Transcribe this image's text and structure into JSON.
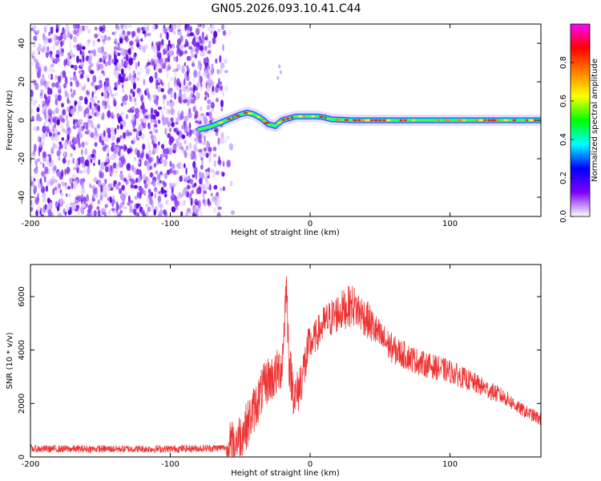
{
  "chart_data": [
    {
      "type": "heatmap",
      "title": "GN05.2026.093.10.41.C44",
      "xlabel": "Height of straight line (km)",
      "ylabel": "Frequency (Hz)",
      "xlim": [
        -200,
        165
      ],
      "ylim": [
        -50,
        50
      ],
      "xticks": [
        -200,
        -100,
        0,
        100
      ],
      "xtick_labels": [
        "-200",
        "-100",
        "0",
        "100"
      ],
      "yticks": [
        -40,
        -20,
        0,
        20,
        40
      ],
      "ytick_labels": [
        "-40",
        "-20",
        "0",
        "20",
        "40"
      ],
      "noise_region_x": [
        -200,
        -55
      ],
      "signal_trace": {
        "x": [
          -80,
          -70,
          -60,
          -50,
          -45,
          -40,
          -35,
          -30,
          -25,
          -20,
          -15,
          -10,
          -5,
          0,
          5,
          10,
          15,
          30,
          60,
          100,
          140,
          165
        ],
        "y": [
          -5,
          -3,
          0,
          3,
          4,
          3,
          1,
          -2,
          -3,
          0,
          1,
          2,
          2,
          2,
          2,
          1.5,
          0.5,
          0,
          0,
          0,
          0,
          0
        ]
      },
      "colorbar": {
        "label": "Normalized spectral amplitude",
        "range": [
          0,
          1
        ],
        "ticks": [
          0,
          0.2,
          0.4,
          0.6,
          0.8
        ],
        "tick_labels": [
          "0.0",
          "0.2",
          "0.4",
          "0.6",
          "0.8"
        ],
        "colors": [
          "#ffffff",
          "#8000ff",
          "#0000ff",
          "#00ffff",
          "#00ff00",
          "#ffff00",
          "#ff8000",
          "#ff0000",
          "#ff00ff"
        ]
      }
    },
    {
      "type": "line",
      "title": "",
      "xlabel": "Height of straight line (km)",
      "ylabel": "SNR (10 * v/v)",
      "xlim": [
        -200,
        165
      ],
      "ylim": [
        0,
        7200
      ],
      "xticks": [
        -200,
        -100,
        0,
        100
      ],
      "xtick_labels": [
        "-200",
        "-100",
        "0",
        "100"
      ],
      "yticks": [
        0,
        2000,
        4000,
        6000
      ],
      "ytick_labels": [
        "0",
        "2000",
        "4000",
        "6000"
      ],
      "series": [
        {
          "name": "SNR",
          "color": "#ee3333",
          "x": [
            -200,
            -180,
            -160,
            -140,
            -120,
            -100,
            -80,
            -70,
            -60,
            -55,
            -50,
            -45,
            -40,
            -35,
            -30,
            -25,
            -20,
            -17,
            -15,
            -12,
            -10,
            -5,
            0,
            10,
            20,
            30,
            40,
            50,
            60,
            80,
            100,
            120,
            140,
            150,
            165
          ],
          "y": [
            300,
            300,
            300,
            300,
            300,
            300,
            320,
            330,
            350,
            500,
            800,
            1200,
            1800,
            2400,
            2900,
            3000,
            3500,
            6500,
            3500,
            2500,
            2200,
            3200,
            4200,
            5000,
            5400,
            5700,
            5200,
            4500,
            4000,
            3500,
            3200,
            2700,
            2200,
            1800,
            1400
          ]
        }
      ]
    }
  ]
}
